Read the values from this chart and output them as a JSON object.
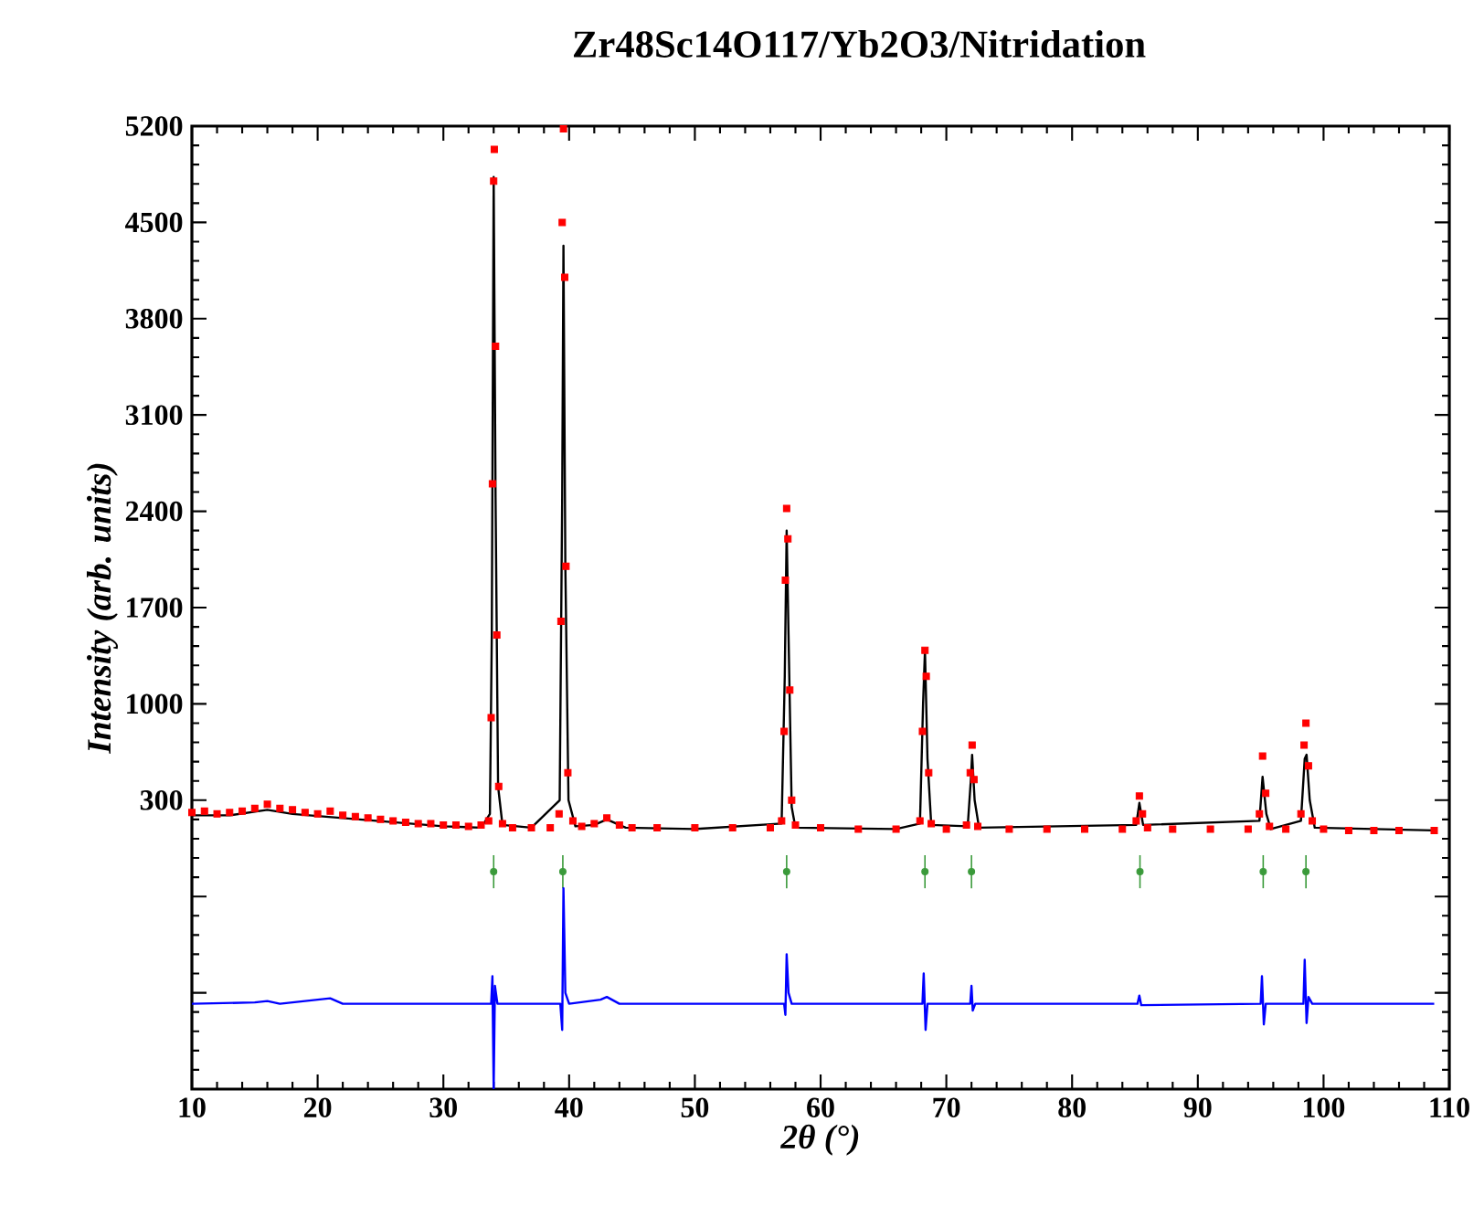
{
  "chart_data": {
    "type": "line",
    "title": "Zr48Sc14O117/Yb2O3/Nitridation",
    "xlabel": "2θ (°)",
    "ylabel": "Intensity (arb. units)",
    "xlim": [
      10,
      110
    ],
    "ylim": [
      -1800,
      5200
    ],
    "xticks": [
      10,
      20,
      30,
      40,
      50,
      60,
      70,
      80,
      90,
      100,
      110
    ],
    "yticks": [
      {
        "value": -1800,
        "label": null
      },
      {
        "value": -1100,
        "label": null
      },
      {
        "value": -400,
        "label": null
      },
      300,
      1000,
      1700,
      2400,
      3100,
      3800,
      4500,
      5200
    ],
    "grid": false,
    "series": [
      {
        "type": "scatter",
        "marker": "square",
        "color": "#ff0000",
        "x": [
          10,
          11,
          12,
          13,
          14,
          15,
          16,
          17,
          18,
          19,
          20,
          21,
          22,
          23,
          24,
          25,
          26,
          27,
          28,
          29,
          30,
          31,
          32,
          33,
          33.6,
          33.8,
          33.9,
          34.0,
          34.05,
          34.15,
          34.25,
          34.4,
          34.7,
          35.5,
          37,
          38.5,
          39.2,
          39.35,
          39.45,
          39.55,
          39.65,
          39.75,
          39.9,
          40.3,
          41,
          42,
          43,
          44,
          45,
          47,
          50,
          53,
          56,
          56.9,
          57.1,
          57.2,
          57.3,
          57.4,
          57.55,
          57.7,
          58,
          60,
          63,
          66,
          67.9,
          68.1,
          68.3,
          68.4,
          68.6,
          68.8,
          70,
          71.6,
          71.9,
          72.05,
          72.2,
          72.5,
          75,
          78,
          81,
          84,
          85.1,
          85.35,
          85.6,
          86,
          88,
          91,
          94,
          94.9,
          95.15,
          95.4,
          95.7,
          97,
          98.2,
          98.45,
          98.6,
          98.8,
          99.1,
          100,
          102,
          104,
          106,
          108.8
        ],
        "values": [
          210,
          220,
          200,
          210,
          220,
          240,
          270,
          240,
          230,
          210,
          200,
          220,
          190,
          180,
          170,
          160,
          150,
          140,
          130,
          130,
          120,
          120,
          110,
          120,
          150,
          900,
          2600,
          4800,
          5030,
          3600,
          1500,
          400,
          130,
          100,
          100,
          100,
          200,
          1600,
          4500,
          5180,
          4100,
          2000,
          500,
          150,
          110,
          130,
          170,
          120,
          100,
          100,
          100,
          100,
          100,
          150,
          800,
          1900,
          2420,
          2200,
          1100,
          300,
          120,
          100,
          90,
          90,
          150,
          800,
          1390,
          1200,
          500,
          130,
          90,
          120,
          500,
          700,
          450,
          110,
          90,
          90,
          90,
          90,
          150,
          330,
          200,
          100,
          90,
          90,
          90,
          200,
          620,
          350,
          110,
          90,
          200,
          700,
          860,
          550,
          150,
          90,
          80,
          80,
          80,
          80
        ]
      },
      {
        "color": "#000000",
        "x": [
          10,
          13,
          16,
          18,
          22,
          26,
          30,
          33,
          33.7,
          33.85,
          34.0,
          34.15,
          34.35,
          34.7,
          37,
          39.25,
          39.45,
          39.55,
          39.7,
          39.95,
          40.5,
          42,
          43,
          44.5,
          50,
          56.9,
          57.15,
          57.3,
          57.45,
          57.7,
          58,
          66,
          67.9,
          68.15,
          68.3,
          68.5,
          68.8,
          71.7,
          71.95,
          72.05,
          72.25,
          72.6,
          85.1,
          85.35,
          85.65,
          94.9,
          95.15,
          95.45,
          95.8,
          98.2,
          98.5,
          98.65,
          98.9,
          99.3,
          108.8
        ],
        "values": [
          190,
          190,
          230,
          200,
          170,
          140,
          110,
          100,
          200,
          1500,
          4830,
          2500,
          400,
          120,
          100,
          300,
          2500,
          4330,
          2000,
          300,
          110,
          120,
          160,
          100,
          90,
          130,
          1200,
          2260,
          1500,
          250,
          100,
          90,
          130,
          1000,
          1390,
          600,
          120,
          110,
          450,
          630,
          300,
          100,
          120,
          280,
          120,
          150,
          470,
          200,
          90,
          150,
          600,
          630,
          300,
          100,
          80
        ]
      },
      {
        "type": "scatter",
        "marker": "none",
        "color": "#3a9a3a",
        "x": [
          34.0,
          39.5,
          57.3,
          68.3,
          72.0,
          85.4,
          95.2,
          98.6
        ],
        "values": [
          -220,
          -220,
          -220,
          -220,
          -220,
          -220,
          -220,
          -220
        ],
        "errors": [
          120,
          120,
          120,
          120,
          120,
          120,
          120,
          120
        ]
      },
      {
        "type": "line",
        "color": "#0000ff",
        "x": [
          10,
          15,
          16,
          17,
          21,
          22,
          30,
          33.8,
          33.9,
          34.0,
          34.1,
          34.3,
          39.3,
          39.45,
          39.55,
          39.7,
          40,
          42.5,
          43,
          44,
          57.1,
          57.2,
          57.3,
          57.45,
          57.7,
          68.1,
          68.2,
          68.35,
          68.5,
          71.9,
          72.0,
          72.1,
          72.3,
          85.2,
          85.35,
          85.5,
          95.0,
          95.1,
          95.25,
          95.4,
          98.4,
          98.5,
          98.65,
          98.8,
          99.1,
          108.8
        ],
        "values": [
          -1180,
          -1170,
          -1160,
          -1180,
          -1140,
          -1180,
          -1180,
          -1180,
          -980,
          -1800,
          -1050,
          -1180,
          -1180,
          -1370,
          -340,
          -1100,
          -1180,
          -1150,
          -1130,
          -1180,
          -1180,
          -1260,
          -820,
          -1100,
          -1180,
          -1180,
          -960,
          -1370,
          -1180,
          -1180,
          -1050,
          -1230,
          -1180,
          -1180,
          -1120,
          -1190,
          -1180,
          -980,
          -1330,
          -1180,
          -1180,
          -860,
          -1320,
          -1130,
          -1180,
          -1180
        ]
      }
    ]
  }
}
